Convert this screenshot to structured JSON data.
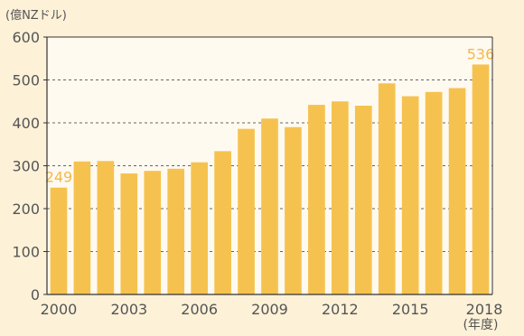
{
  "chart_data": {
    "type": "bar",
    "title": "",
    "ylabel": "(億NZドル)",
    "xlabel": "(年度)",
    "categories": [
      "2000",
      "2001",
      "2002",
      "2003",
      "2004",
      "2005",
      "2006",
      "2007",
      "2008",
      "2009",
      "2010",
      "2011",
      "2012",
      "2013",
      "2014",
      "2015",
      "2016",
      "2017",
      "2018"
    ],
    "x_tick_labels": [
      "2000",
      "2003",
      "2006",
      "2009",
      "2012",
      "2015",
      "2018"
    ],
    "y_ticks": [
      0,
      100,
      200,
      300,
      400,
      500,
      600
    ],
    "values": [
      249,
      310,
      311,
      282,
      288,
      293,
      308,
      334,
      386,
      410,
      390,
      442,
      450,
      440,
      492,
      462,
      472,
      481,
      536
    ],
    "data_labels": [
      {
        "index": 0,
        "text": "249"
      },
      {
        "index": 18,
        "text": "536"
      }
    ],
    "ylim": [
      0,
      600
    ],
    "grid": true,
    "grid_style": "dashed",
    "colors": {
      "bar": "#f6c24f",
      "data_label": "#f2b84d",
      "background": "#fdf1d8",
      "plot_area": "#fffaf0",
      "axis": "#333333",
      "grid": "#666666"
    }
  }
}
